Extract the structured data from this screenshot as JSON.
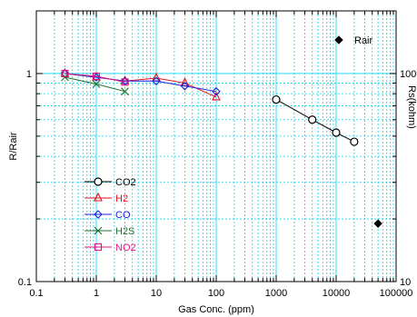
{
  "chart_data": {
    "type": "line",
    "xscale": "log",
    "yscale": "log",
    "y2scale": "log",
    "xlim": [
      0.1,
      100000
    ],
    "ylim": [
      0.1,
      2
    ],
    "y2lim": [
      10,
      200
    ],
    "xlabel": "Gas Conc. (ppm)",
    "ylabel": "R/Rair",
    "y2label": "Rs(kohm)",
    "grid": true,
    "x_ticks": [
      {
        "value": 0.1,
        "label": "0.1"
      },
      {
        "value": 1,
        "label": "1"
      },
      {
        "value": 10,
        "label": "10"
      },
      {
        "value": 100,
        "label": "100"
      },
      {
        "value": 1000,
        "label": "1000"
      },
      {
        "value": 10000,
        "label": "10000"
      },
      {
        "value": 100000,
        "label": "100000"
      }
    ],
    "y_ticks": [
      {
        "value": 0.1,
        "label": "0.1"
      },
      {
        "value": 1,
        "label": "1"
      }
    ],
    "y2_ticks": [
      {
        "value": 10,
        "label": "10"
      },
      {
        "value": 100,
        "label": "100"
      }
    ],
    "legend_position": "left",
    "series": [
      {
        "name": "CO2",
        "color": "#000000",
        "marker": "circle",
        "x": [
          1000,
          4000,
          10000,
          20000
        ],
        "y": [
          0.75,
          0.6,
          0.52,
          0.47
        ]
      },
      {
        "name": "H2",
        "color": "#e8101a",
        "marker": "triangle",
        "x": [
          0.3,
          1,
          3,
          10,
          30,
          100
        ],
        "y": [
          1.0,
          0.96,
          0.92,
          0.95,
          0.9,
          0.77
        ]
      },
      {
        "name": "CO",
        "color": "#2020e0",
        "marker": "diamond",
        "x": [
          0.3,
          1,
          3,
          10,
          30,
          100
        ],
        "y": [
          1.0,
          0.96,
          0.92,
          0.92,
          0.87,
          0.82
        ]
      },
      {
        "name": "H2S",
        "color": "#1f6e2e",
        "marker": "x",
        "x": [
          0.3,
          1,
          3
        ],
        "y": [
          0.96,
          0.89,
          0.82
        ]
      },
      {
        "name": "NO2",
        "color": "#e0157f",
        "marker": "square",
        "x": [
          0.3,
          1,
          3
        ],
        "y": [
          1.0,
          0.97,
          0.91
        ]
      }
    ],
    "reference_points": [
      {
        "name": "Rair",
        "marker": "filled-diamond",
        "color": "#000000",
        "x": 50000,
        "y2": 19
      }
    ],
    "colors": {
      "grid": "#00d8f0",
      "axis": "#000000"
    }
  }
}
